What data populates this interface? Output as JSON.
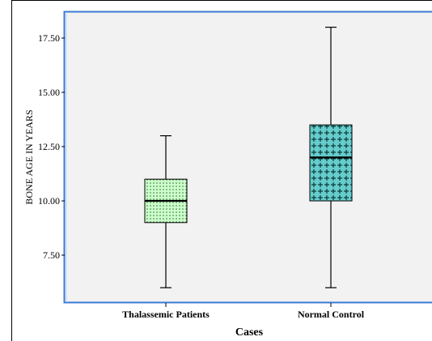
{
  "chart_data": {
    "type": "box",
    "xlabel": "Cases",
    "ylabel": "BONE AGE IN YEARS",
    "ylim": [
      5.5,
      19.2
    ],
    "yticks": [
      7.5,
      10.0,
      12.5,
      15.0,
      17.5
    ],
    "ytick_labels": [
      "7.50",
      "10.00",
      "12.50",
      "15.00",
      "17.50"
    ],
    "categories": [
      "Thalassemic Patients",
      "Normal Control"
    ],
    "boxes": [
      {
        "name": "Thalassemic Patients",
        "min": 6.0,
        "q1": 9.0,
        "median": 10.0,
        "q3": 11.0,
        "max": 13.0,
        "fill": "#ccffcc",
        "pattern": "dots"
      },
      {
        "name": "Normal Control",
        "min": 6.0,
        "q1": 10.0,
        "median": 12.0,
        "q3": 13.5,
        "max": 18.0,
        "fill": "#66cccc",
        "pattern": "crosses"
      }
    ],
    "grid": false,
    "legend": "none",
    "colors": {
      "plot_background": "#f2f2f2",
      "frame": "#3a7bd5"
    }
  }
}
